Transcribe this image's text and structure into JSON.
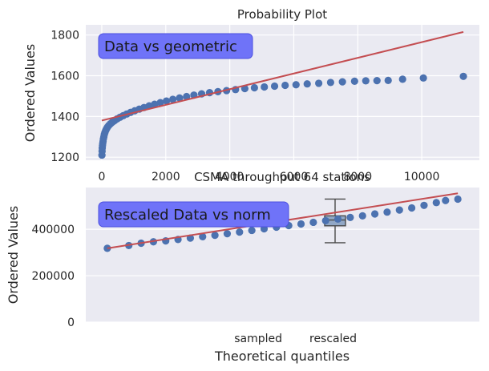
{
  "chart_data": [
    {
      "type": "scatter",
      "title": "Probability Plot",
      "ylabel": "Ordered Values",
      "xlabel": "",
      "xlim": [
        -500,
        11800
      ],
      "ylim": [
        1185,
        1850
      ],
      "xticks": [
        0,
        2000,
        4000,
        6000,
        8000,
        10000
      ],
      "yticks": [
        1200,
        1400,
        1600,
        1800
      ],
      "annotation": "Data vs geometric",
      "grid": true,
      "points": [
        [
          5,
          1210
        ],
        [
          10,
          1230
        ],
        [
          15,
          1245
        ],
        [
          22,
          1258
        ],
        [
          30,
          1268
        ],
        [
          40,
          1278
        ],
        [
          50,
          1290
        ],
        [
          65,
          1300
        ],
        [
          80,
          1312
        ],
        [
          100,
          1322
        ],
        [
          125,
          1332
        ],
        [
          150,
          1340
        ],
        [
          180,
          1348
        ],
        [
          220,
          1356
        ],
        [
          270,
          1364
        ],
        [
          330,
          1372
        ],
        [
          400,
          1380
        ],
        [
          480,
          1388
        ],
        [
          570,
          1396
        ],
        [
          670,
          1404
        ],
        [
          780,
          1412
        ],
        [
          900,
          1420
        ],
        [
          1030,
          1428
        ],
        [
          1170,
          1436
        ],
        [
          1320,
          1444
        ],
        [
          1480,
          1452
        ],
        [
          1650,
          1460
        ],
        [
          1830,
          1468
        ],
        [
          2020,
          1476
        ],
        [
          2220,
          1484
        ],
        [
          2430,
          1491
        ],
        [
          2650,
          1498
        ],
        [
          2880,
          1505
        ],
        [
          3120,
          1511
        ],
        [
          3370,
          1517
        ],
        [
          3630,
          1522
        ],
        [
          3900,
          1527
        ],
        [
          4180,
          1532
        ],
        [
          4470,
          1537
        ],
        [
          4770,
          1541
        ],
        [
          5080,
          1545
        ],
        [
          5400,
          1549
        ],
        [
          5730,
          1553
        ],
        [
          6070,
          1556
        ],
        [
          6420,
          1560
        ],
        [
          6780,
          1563
        ],
        [
          7150,
          1567
        ],
        [
          7520,
          1570
        ],
        [
          7900,
          1573
        ],
        [
          8250,
          1575
        ],
        [
          8600,
          1576
        ],
        [
          8950,
          1577
        ],
        [
          9400,
          1583
        ],
        [
          10050,
          1589
        ],
        [
          11300,
          1597
        ]
      ],
      "fit_line": {
        "x": [
          0,
          11300
        ],
        "y": [
          1380,
          1815
        ]
      },
      "inset": {
        "type": "table",
        "title": "CSMA throughput 64 stations",
        "categories": [
          "sampled",
          "rescaled"
        ]
      }
    },
    {
      "type": "scatter",
      "title": "",
      "ylabel": "Ordered Values",
      "xlabel": "Theoretical quantiles",
      "xlim": [
        -3.2,
        3.2
      ],
      "ylim": [
        0,
        580000
      ],
      "yticks": [
        0,
        200000,
        400000
      ],
      "annotation": "Rescaled Data vs norm",
      "grid": true,
      "points": [
        [
          -2.85,
          318000
        ],
        [
          -2.5,
          330000
        ],
        [
          -2.3,
          340000
        ],
        [
          -2.1,
          346000
        ],
        [
          -1.9,
          350000
        ],
        [
          -1.7,
          356000
        ],
        [
          -1.5,
          362000
        ],
        [
          -1.3,
          368000
        ],
        [
          -1.1,
          374000
        ],
        [
          -0.9,
          381000
        ],
        [
          -0.7,
          388000
        ],
        [
          -0.5,
          395000
        ],
        [
          -0.3,
          402000
        ],
        [
          -0.1,
          409000
        ],
        [
          0.1,
          416000
        ],
        [
          0.3,
          423000
        ],
        [
          0.5,
          430000
        ],
        [
          0.7,
          437000
        ],
        [
          0.9,
          444000
        ],
        [
          1.1,
          451000
        ],
        [
          1.3,
          458000
        ],
        [
          1.5,
          466000
        ],
        [
          1.7,
          474000
        ],
        [
          1.9,
          483000
        ],
        [
          2.1,
          492000
        ],
        [
          2.3,
          503000
        ],
        [
          2.5,
          515000
        ],
        [
          2.65,
          524000
        ],
        [
          2.85,
          530000
        ]
      ],
      "fit_line": {
        "x": [
          -2.85,
          2.85
        ],
        "y": [
          318000,
          555000
        ]
      },
      "boxplot": {
        "label": "rescaled",
        "min": 342000,
        "q1": 415000,
        "median": 440000,
        "q3": 458000,
        "max": 530000
      }
    }
  ]
}
